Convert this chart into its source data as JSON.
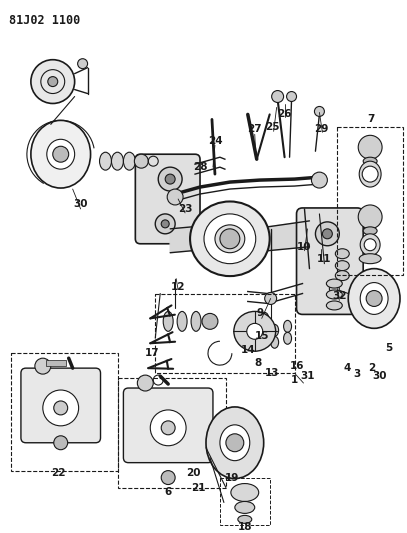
{
  "title": "81J02 1100",
  "bg_color": "#ffffff",
  "lc": "#1a1a1a",
  "fig_width": 4.07,
  "fig_height": 5.33,
  "dpi": 100
}
